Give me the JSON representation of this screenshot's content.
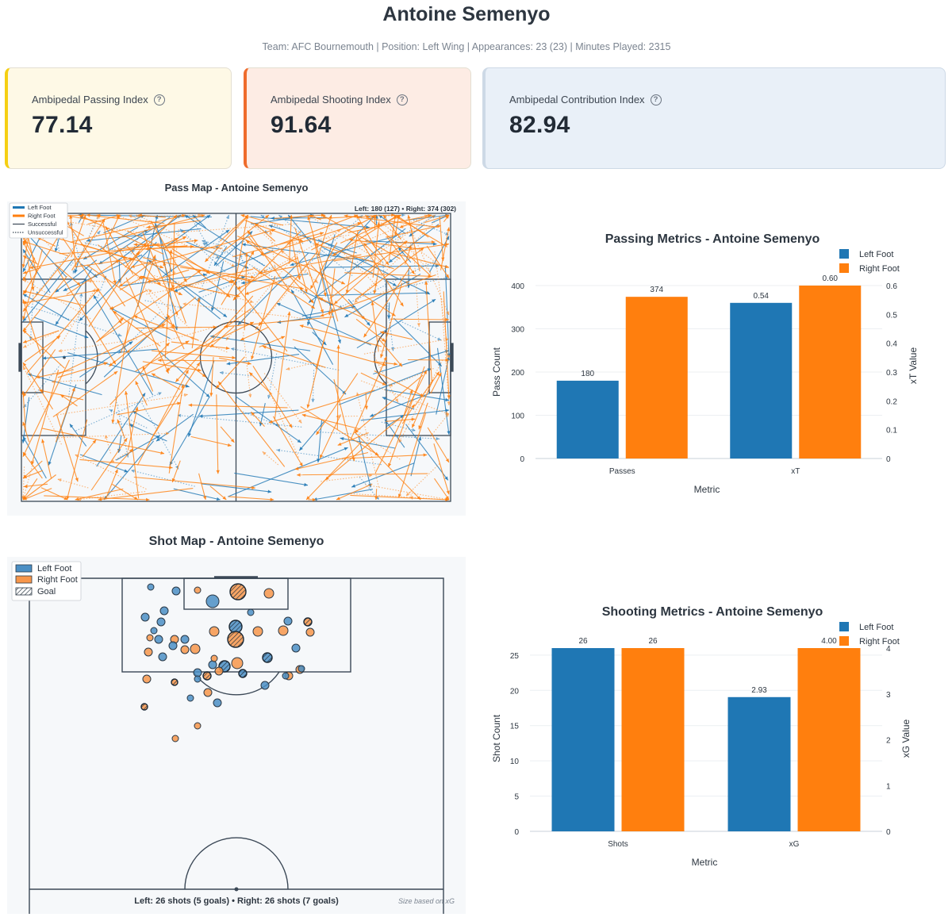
{
  "header": {
    "title": "Antoine Semenyo",
    "subtitle": "Team: AFC Bournemouth | Position: Left Wing | Appearances: 23 (23) | Minutes Played: 2315"
  },
  "cards": [
    {
      "label": "Ambipedal Passing Index",
      "value": "77.14",
      "accent": "#f5cf12"
    },
    {
      "label": "Ambipedal Shooting Index",
      "value": "91.64",
      "accent": "#ef6c2c"
    },
    {
      "label": "Ambipedal Contribution Index",
      "value": "82.94",
      "accent": "#2a70ad"
    }
  ],
  "colors": {
    "left": "#1f77b4",
    "right": "#ff7f0e",
    "left_light": "#4b8fc4",
    "right_light": "#f7964a"
  },
  "chart_data": [
    {
      "type": "scatter",
      "name": "pass_map",
      "title": "Pass Map - Antoine Semenyo",
      "annotation": "Left: 180 (127) • Right: 374 (302)",
      "legend": [
        "Left Foot",
        "Right Foot",
        "Successful",
        "Unsuccessful"
      ],
      "legend_position": "top-left",
      "series": [
        {
          "name": "Left Foot",
          "total": 180,
          "successful": 127
        },
        {
          "name": "Right Foot",
          "total": 374,
          "successful": 302
        }
      ]
    },
    {
      "type": "bar",
      "name": "passing_metrics",
      "title": "Passing Metrics - Antoine Semenyo",
      "categories": [
        "Passes",
        "xT"
      ],
      "xlabel": "Metric",
      "ylabel": "Pass Count",
      "y2label": "xT Value",
      "ylim": [
        0,
        400
      ],
      "y2lim": [
        0,
        0.6
      ],
      "yticks": [
        "0",
        "100",
        "200",
        "300",
        "400"
      ],
      "y2ticks": [
        "0",
        "0.1",
        "0.2",
        "0.3",
        "0.4",
        "0.5",
        "0.6"
      ],
      "legend": [
        "Left Foot",
        "Right Foot"
      ],
      "legend_position": "top-right",
      "series": [
        {
          "name": "Left Foot",
          "values": [
            180,
            0.54
          ],
          "labels": [
            "180",
            "0.54"
          ]
        },
        {
          "name": "Right Foot",
          "values": [
            374,
            0.6
          ],
          "labels": [
            "374",
            "0.60"
          ]
        }
      ]
    },
    {
      "type": "scatter",
      "name": "shot_map",
      "title": "Shot Map - Antoine Semenyo",
      "annotation": "Left: 26 shots (5 goals) • Right: 26 shots (7 goals)",
      "note": "Size based on xG",
      "legend": [
        "Left Foot",
        "Right Foot",
        "Goal"
      ],
      "legend_position": "top-left",
      "series": [
        {
          "name": "Left Foot",
          "shots": 26,
          "goals": 5
        },
        {
          "name": "Right Foot",
          "shots": 26,
          "goals": 7
        }
      ]
    },
    {
      "type": "bar",
      "name": "shooting_metrics",
      "title": "Shooting Metrics - Antoine Semenyo",
      "categories": [
        "Shots",
        "xG"
      ],
      "xlabel": "Metric",
      "ylabel": "Shot Count",
      "y2label": "xG Value",
      "ylim": [
        0,
        26
      ],
      "y2lim": [
        0,
        4
      ],
      "yticks": [
        "0",
        "5",
        "10",
        "15",
        "20",
        "25"
      ],
      "y2ticks": [
        "0",
        "1",
        "2",
        "3",
        "4"
      ],
      "legend": [
        "Left Foot",
        "Right Foot"
      ],
      "legend_position": "top-right",
      "series": [
        {
          "name": "Left Foot",
          "values": [
            26,
            2.93
          ],
          "labels": [
            "26",
            "2.93"
          ]
        },
        {
          "name": "Right Foot",
          "values": [
            26,
            4.0
          ],
          "labels": [
            "26",
            "4.00"
          ]
        }
      ]
    }
  ]
}
